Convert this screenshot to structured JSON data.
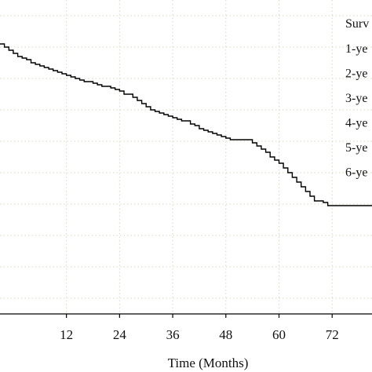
{
  "chart_data": {
    "type": "line",
    "subtype": "step",
    "xlabel": "Time (Months)",
    "ylabel": "",
    "xlim": [
      -3,
      81
    ],
    "ylim": [
      0,
      1
    ],
    "x_ticks": [
      12,
      24,
      36,
      48,
      60,
      72
    ],
    "grid": true,
    "grid_style": "dotted",
    "line_color": "#000000",
    "grid_color": "#d8d8c0",
    "legend": {
      "placement": "top-right",
      "title": "Surv",
      "entries": [
        "1-ye",
        "2-ye",
        "3-ye",
        "4-ye",
        "5-ye",
        "6-ye"
      ]
    },
    "series": [
      {
        "x": [
          -3,
          -2,
          -1,
          0,
          1,
          2,
          3,
          4,
          5,
          6,
          7,
          8,
          9,
          10,
          11,
          12,
          13,
          14,
          15,
          16,
          18,
          19,
          20,
          22,
          23,
          24,
          25,
          27,
          28,
          29,
          30,
          31,
          32,
          33,
          34,
          35,
          36,
          37,
          38,
          40,
          41,
          42,
          43,
          44,
          45,
          46,
          47,
          48,
          49,
          54,
          55,
          56,
          57,
          58,
          59,
          60,
          61,
          62,
          63,
          64,
          65,
          66,
          67,
          68,
          70,
          71,
          82
        ],
        "y": [
          0.86,
          0.85,
          0.84,
          0.83,
          0.82,
          0.815,
          0.81,
          0.8,
          0.795,
          0.79,
          0.785,
          0.78,
          0.775,
          0.77,
          0.765,
          0.76,
          0.755,
          0.75,
          0.745,
          0.74,
          0.735,
          0.73,
          0.725,
          0.72,
          0.715,
          0.71,
          0.7,
          0.69,
          0.68,
          0.67,
          0.66,
          0.65,
          0.645,
          0.64,
          0.635,
          0.63,
          0.625,
          0.62,
          0.615,
          0.605,
          0.6,
          0.59,
          0.585,
          0.58,
          0.575,
          0.57,
          0.565,
          0.56,
          0.555,
          0.545,
          0.535,
          0.525,
          0.515,
          0.5,
          0.49,
          0.48,
          0.465,
          0.45,
          0.435,
          0.42,
          0.405,
          0.39,
          0.375,
          0.36,
          0.355,
          0.345,
          0.345
        ]
      }
    ]
  }
}
